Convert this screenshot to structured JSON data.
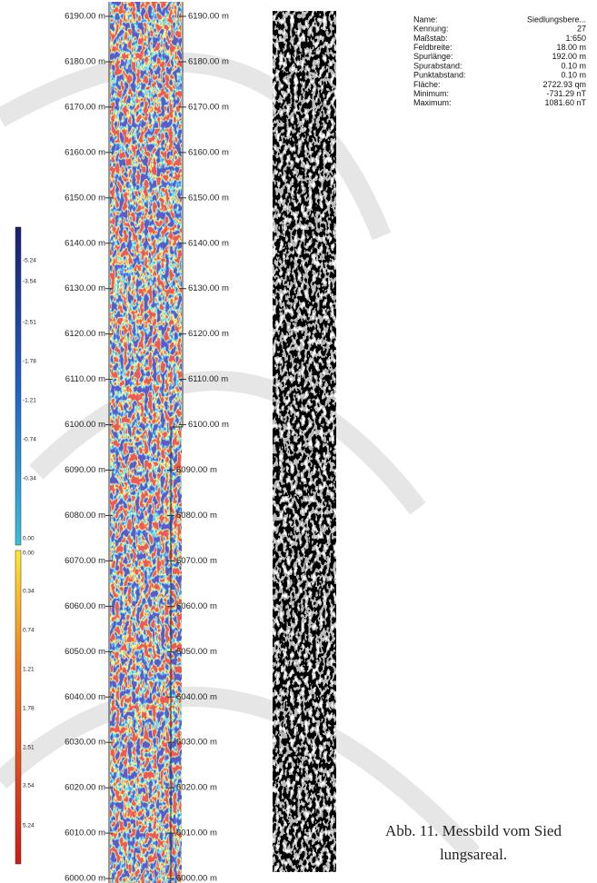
{
  "left_axis": [
    "6190.00 m",
    "6180.00 m",
    "6170.00 m",
    "6160.00 m",
    "6150.00 m",
    "6140.00 m",
    "6130.00 m",
    "6120.00 m",
    "6110.00 m",
    "6100.00 m",
    "6090.00 m",
    "6080.00 m",
    "6070.00 m",
    "6060.00 m",
    "6050.00 m",
    "6040.00 m",
    "6030.00 m",
    "6020.00 m",
    "6010.00 m",
    "6000.00 m"
  ],
  "right_axis": [
    "6190.00 m",
    "6180.00 m",
    "6170.00 m",
    "6160.00 m",
    "6150.00 m",
    "6140.00 m",
    "6130.00 m",
    "6120.00 m",
    "6110.00 m",
    "6100.00 m",
    "6090.00 m",
    "6080.00 m",
    "6070.00 m",
    "6060.00 m",
    "6050.00 m",
    "6040.00 m",
    "6030.00 m",
    "6020.00 m",
    "6010.00 m",
    "6000.00 m"
  ],
  "scale_negative": [
    "-5.24",
    "-3.54",
    "-2.51",
    "-1.78",
    "-1.21",
    "-0.74",
    "-0.34",
    "0.00"
  ],
  "scale_positive": [
    "0.00",
    "0.34",
    "0.74",
    "1.21",
    "1.78",
    "2.51",
    "3.54",
    "5.24"
  ],
  "info": [
    [
      "Name:",
      "Siedlungsbere..."
    ],
    [
      "Kennung:",
      "27"
    ],
    [
      "Maßstab:",
      "1:650"
    ],
    [
      "Feldbreite:",
      "18.00 m"
    ],
    [
      "Spurlänge:",
      "192.00 m"
    ],
    [
      "Spurabstand:",
      "0.10 m"
    ],
    [
      "Punktabstand:",
      "0.10 m"
    ],
    [
      "Fläche:",
      "2722.93 qm"
    ],
    [
      "Minimum:",
      "-731.29 nT"
    ],
    [
      "Maximum:",
      "1081.60 nT"
    ]
  ],
  "caption": [
    "Abb. 11. Messbild vom Sied",
    "lungsareal."
  ]
}
